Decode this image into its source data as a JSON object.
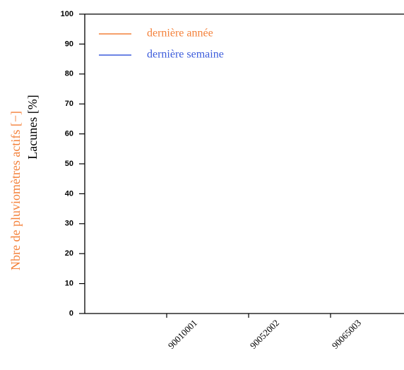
{
  "chart_data": {
    "type": "line",
    "ylabel": "Lacunes [%]",
    "y2label": "Nbre de pluviomètres actifs [−]",
    "y2label_color": "#f4813a",
    "categories": [
      "90010001",
      "90052002",
      "90065003"
    ],
    "series": [
      {
        "name": "dernière année",
        "color": "#f4813a",
        "values": [
          null,
          null,
          null
        ]
      },
      {
        "name": "dernière semaine",
        "color": "#3b5bdb",
        "values": [
          null,
          null,
          null
        ]
      }
    ],
    "ylim": [
      0,
      100
    ],
    "yticks": [
      0,
      10,
      20,
      30,
      40,
      50,
      60,
      70,
      80,
      90,
      100
    ]
  }
}
